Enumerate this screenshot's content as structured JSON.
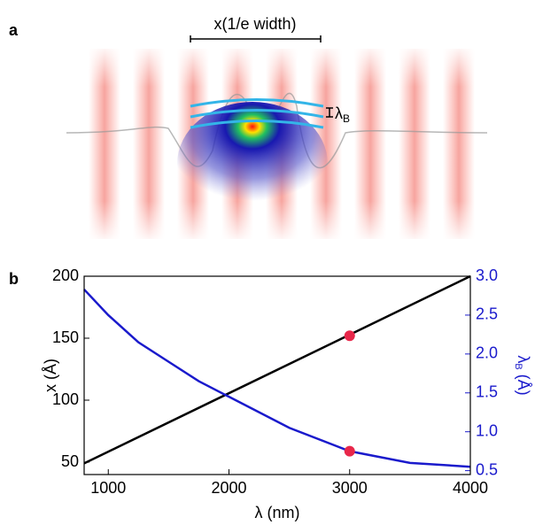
{
  "figure": {
    "panel_labels": [
      "a",
      "b"
    ],
    "illustration": {
      "width_label": "x(1/e width)",
      "wavelength_label": [
        "λ",
        "B"
      ]
    }
  },
  "chart_data": {
    "type": "line",
    "x_label": "λ (nm)",
    "y_label": "x (Å)",
    "y2_label": [
      "λ",
      "B",
      " (Å)"
    ],
    "xlim": [
      800,
      4000
    ],
    "xticks": [
      1000,
      2000,
      3000,
      4000
    ],
    "ylim": [
      40,
      200
    ],
    "yticks": [
      50,
      100,
      150,
      200
    ],
    "y2lim": [
      0.45,
      3.0
    ],
    "y2ticks": [
      {
        "value": 0.5,
        "label": "0.5"
      },
      {
        "value": 1.0,
        "label": "1.0"
      },
      {
        "value": 1.5,
        "label": "1.5"
      },
      {
        "value": 2.0,
        "label": "2.0"
      },
      {
        "value": 2.5,
        "label": "2.5"
      },
      {
        "value": 3.0,
        "label": "3.0"
      }
    ],
    "y2_color": "#1a1acc",
    "series": [
      {
        "color": "#000000",
        "x": [
          800,
          4000
        ],
        "values": [
          49,
          200
        ]
      },
      {
        "color": "#1a1acc",
        "axis": "y2",
        "x": [
          800,
          1000,
          1250,
          1500,
          1750,
          2000,
          2500,
          3000,
          3500,
          4000
        ],
        "values": [
          2.83,
          2.5,
          2.15,
          1.9,
          1.65,
          1.45,
          1.05,
          0.75,
          0.6,
          0.55
        ]
      }
    ],
    "markers": {
      "color": "#e8274a",
      "points": [
        {
          "x": 3000,
          "value": 152
        },
        {
          "x": 3000,
          "value": 0.75,
          "axis": "y2"
        }
      ]
    }
  }
}
